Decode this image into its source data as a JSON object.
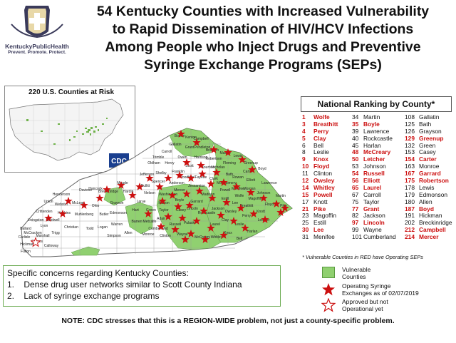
{
  "logo": {
    "name": "KentuckyPublicHealth",
    "tagline": "Prevent. Promote. Protect."
  },
  "title": {
    "line1": "54 Kentucky Counties with Increased Vulnerability",
    "line2": "to Rapid Dissemination of HIV/HCV Infections",
    "line3": "Among People who Inject Drugs and Preventive",
    "line4": "Syringe Exchange Programs (SEPs)"
  },
  "inset": {
    "label": "220 U.S. Counties at Risk",
    "badge": "CDC"
  },
  "ranking": {
    "title": "National Ranking by County*",
    "columns": [
      [
        {
          "rank": "1",
          "county": "Wolfe",
          "sep": true
        },
        {
          "rank": "3",
          "county": "Breathitt",
          "sep": true
        },
        {
          "rank": "4",
          "county": "Perry",
          "sep": true
        },
        {
          "rank": "5",
          "county": "Clay",
          "sep": true
        },
        {
          "rank": "6",
          "county": "Bell",
          "sep": false
        },
        {
          "rank": "8",
          "county": "Leslie",
          "sep": false
        },
        {
          "rank": "9",
          "county": "Knox",
          "sep": true
        },
        {
          "rank": "10",
          "county": "Floyd",
          "sep": true
        },
        {
          "rank": "11",
          "county": "Clinton",
          "sep": false
        },
        {
          "rank": "12",
          "county": "Owsley",
          "sep": true
        },
        {
          "rank": "14",
          "county": "Whitley",
          "sep": true
        },
        {
          "rank": "15",
          "county": "Powell",
          "sep": true
        },
        {
          "rank": "17",
          "county": "Knott",
          "sep": false
        },
        {
          "rank": "21",
          "county": "Pike",
          "sep": true
        },
        {
          "rank": "23",
          "county": "Magoffin",
          "sep": false
        },
        {
          "rank": "25",
          "county": "Estill",
          "sep": false
        },
        {
          "rank": "30",
          "county": "Lee",
          "sep": true
        },
        {
          "rank": "31",
          "county": "Menifee",
          "sep": false
        }
      ],
      [
        {
          "rank": "34",
          "county": "Martin",
          "sep": false
        },
        {
          "rank": "35",
          "county": "Boyle",
          "sep": true
        },
        {
          "rank": "39",
          "county": "Lawrence",
          "sep": false
        },
        {
          "rank": "40",
          "county": "Rockcastle",
          "sep": false
        },
        {
          "rank": "45",
          "county": "Harlan",
          "sep": false
        },
        {
          "rank": "48",
          "county": "McCreary",
          "sep": true
        },
        {
          "rank": "50",
          "county": "Letcher",
          "sep": true
        },
        {
          "rank": "53",
          "county": "Johnson",
          "sep": false
        },
        {
          "rank": "54",
          "county": "Russell",
          "sep": true
        },
        {
          "rank": "56",
          "county": "Elliott",
          "sep": true
        },
        {
          "rank": "65",
          "county": "Laurel",
          "sep": true
        },
        {
          "rank": "67",
          "county": "Carroll",
          "sep": false
        },
        {
          "rank": "75",
          "county": "Taylor",
          "sep": false
        },
        {
          "rank": "77",
          "county": "Grant",
          "sep": true
        },
        {
          "rank": "82",
          "county": "Jackson",
          "sep": false
        },
        {
          "rank": "97",
          "county": "Lincoln",
          "sep": true
        },
        {
          "rank": "99",
          "county": "Wayne",
          "sep": false
        },
        {
          "rank": "101",
          "county": "Cumberland",
          "sep": false
        }
      ],
      [
        {
          "rank": "108",
          "county": "Gallatin",
          "sep": false
        },
        {
          "rank": "125",
          "county": "Bath",
          "sep": false
        },
        {
          "rank": "126",
          "county": "Grayson",
          "sep": false
        },
        {
          "rank": "129",
          "county": "Greenup",
          "sep": true
        },
        {
          "rank": "132",
          "county": "Green",
          "sep": false
        },
        {
          "rank": "153",
          "county": "Casey",
          "sep": false
        },
        {
          "rank": "154",
          "county": "Carter",
          "sep": true
        },
        {
          "rank": "163",
          "county": "Monroe",
          "sep": false
        },
        {
          "rank": "167",
          "county": "Garrard",
          "sep": true
        },
        {
          "rank": "175",
          "county": "Robertson",
          "sep": true
        },
        {
          "rank": "178",
          "county": "Lewis",
          "sep": false
        },
        {
          "rank": "179",
          "county": "Edmonson",
          "sep": false
        },
        {
          "rank": "180",
          "county": "Allen",
          "sep": false
        },
        {
          "rank": "187",
          "county": "Boyd",
          "sep": true
        },
        {
          "rank": "191",
          "county": "Hickman",
          "sep": false
        },
        {
          "rank": "202",
          "county": "Breckinridge",
          "sep": false
        },
        {
          "rank": "212",
          "county": "Campbell",
          "sep": true
        },
        {
          "rank": "214",
          "county": "Mercer",
          "sep": true
        }
      ]
    ],
    "note": "* Vulnerable Counties in RED have Operating SEPs"
  },
  "map_labels": [
    "Boone",
    "Kenton",
    "Campbell",
    "Gallatin",
    "Grant",
    "Pendleton",
    "Bracken",
    "Mason",
    "Lewis",
    "Greenup",
    "Boyd",
    "Carroll",
    "Owen",
    "Harrison",
    "Robertson",
    "Fleming",
    "Carter",
    "Trimble",
    "Henry",
    "Scott",
    "Bourbon",
    "Nicholas",
    "Rowan",
    "Elliott",
    "Lawrence",
    "Oldham",
    "Shelby",
    "Franklin",
    "Woodford",
    "Clark",
    "Bath",
    "Morgan",
    "Jefferson",
    "Spencer",
    "Anderson",
    "Fayette",
    "Montgomery",
    "Menifee",
    "Johnson",
    "Martin",
    "Bullitt",
    "Mercer",
    "Jessamine",
    "Powell",
    "Wolfe",
    "Magoffin",
    "Floyd",
    "Pike",
    "Hardin",
    "Nelson",
    "Washington",
    "Boyle",
    "Madison",
    "Estill",
    "Lee",
    "Breathitt",
    "Knott",
    "Meade",
    "Breckinridge",
    "Marion",
    "Garrard",
    "Jackson",
    "Owsley",
    "Perry",
    "Letcher",
    "Hancock",
    "Larue",
    "Taylor",
    "Casey",
    "Lincoln",
    "Rockcastle",
    "Clay",
    "Leslie",
    "Daviess",
    "Grayson",
    "Green",
    "Pulaski",
    "Laurel",
    "Harlan",
    "Henderson",
    "Ohio",
    "Hart",
    "Adair",
    "Russell",
    "Knox",
    "Bell",
    "Union",
    "Webster",
    "McLean",
    "Butler",
    "Edmonson",
    "Barren",
    "Metcalfe",
    "Wayne",
    "McCreary",
    "Whitley",
    "Crittenden",
    "Hopkins",
    "Muhlenberg",
    "Warren",
    "Monroe",
    "Clinton",
    "Cumberland",
    "Livingston",
    "Caldwell",
    "Christian",
    "Todd",
    "Logan",
    "Simpson",
    "Allen",
    "Lyon",
    "Trigg",
    "Ballard",
    "McCracken",
    "Marshall",
    "Calloway",
    "Graves",
    "Carlisle",
    "Hickman",
    "Fulton"
  ],
  "concerns": {
    "heading": "Specific concerns regarding Kentucky Counties:",
    "items": [
      {
        "num": "1.",
        "text": "Dense drug user networks similar to Scott County Indiana"
      },
      {
        "num": "2.",
        "text": "Lack of syringe exchange programs"
      }
    ]
  },
  "legend": {
    "vulnerable": "Vulnerable Counties",
    "operating_line1": "Operating Syringe",
    "operating_line2": "Exchanges as of 02/07/2019",
    "approved_line1": "Approved but not",
    "approved_line2": "Operational yet"
  },
  "note": "NOTE:  CDC stresses that this is a REGION-WIDE problem, not just a county-specific problem.",
  "colors": {
    "vulnerable": "#90d070",
    "star": "#cc1010",
    "sep_text": "#cc1010"
  }
}
